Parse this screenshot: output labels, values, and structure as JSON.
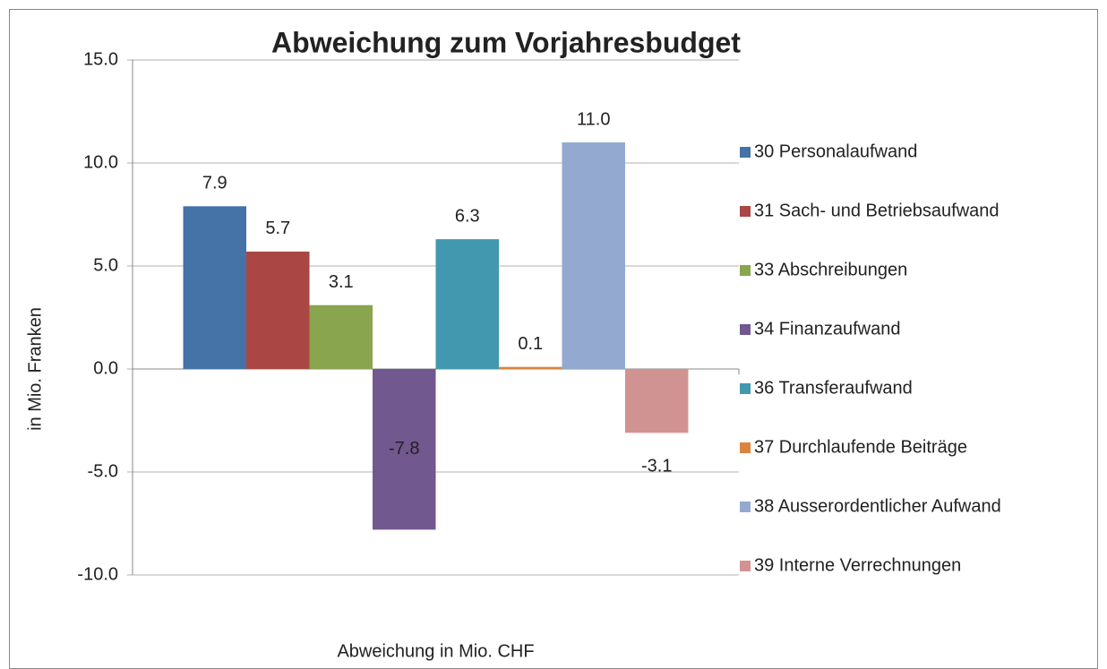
{
  "chart_data": {
    "type": "bar",
    "title": "Abweichung zum Vorjahresbudget",
    "y_label": "in Mio. Franken",
    "categories": [
      "Abweichung in Mio. CHF"
    ],
    "series": [
      {
        "name": "30 Personalaufwand",
        "color": "#4572a7",
        "values": [
          7.9
        ]
      },
      {
        "name": "31 Sach- und Betriebsaufwand",
        "color": "#aa4643",
        "values": [
          5.7
        ]
      },
      {
        "name": "33 Abschreibungen",
        "color": "#89a54e",
        "values": [
          3.1
        ]
      },
      {
        "name": "34 Finanzaufwand",
        "color": "#71588f",
        "values": [
          -7.8
        ]
      },
      {
        "name": "36 Transferaufwand",
        "color": "#4198af",
        "values": [
          6.3
        ]
      },
      {
        "name": "37 Durchlaufende Beiträge",
        "color": "#db843d",
        "values": [
          0.1
        ]
      },
      {
        "name": "38 Ausserordentlicher Aufwand",
        "color": "#93a9cf",
        "values": [
          11
        ],
        "value_labels": [
          "11.0"
        ]
      },
      {
        "name": "39 Interne Verrechnungen",
        "color": "#d19392",
        "values": [
          -3.1
        ]
      }
    ],
    "ylim": [
      -10,
      15
    ],
    "yticks": [
      {
        "value": -10,
        "label": "-10.0"
      },
      {
        "value": -5,
        "label": "-5.0"
      },
      {
        "value": 0,
        "label": "0.0"
      },
      {
        "value": 5,
        "label": "5.0"
      },
      {
        "value": 10,
        "label": "10.0"
      },
      {
        "value": 15,
        "label": "15.0"
      }
    ],
    "grid": true,
    "legend": "right"
  }
}
